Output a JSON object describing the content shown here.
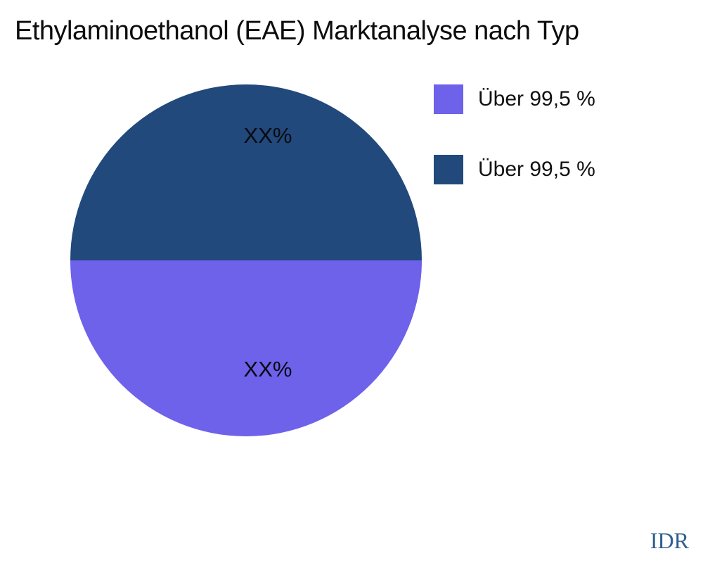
{
  "title": "Ethylaminoethanol (EAE) Marktanalyse nach Typ",
  "watermark": "IDR",
  "colors": {
    "background": "#ffffff",
    "slice_bottom": "#6e61ea",
    "slice_top": "#21497b",
    "watermark_text": "#2e6090"
  },
  "chart_data": {
    "type": "pie",
    "title": "Ethylaminoethanol (EAE) Marktanalyse nach Typ",
    "legend_position": "top-right",
    "start_angle_deg": 90,
    "segments": [
      {
        "label": "Über 99,5 %",
        "value": 50,
        "color": "#6e61ea",
        "slice_label": "XX%",
        "position": "bottom"
      },
      {
        "label": "Über 99,5 %",
        "value": 50,
        "color": "#21497b",
        "slice_label": "XX%",
        "position": "top"
      }
    ]
  },
  "legend": {
    "items": [
      {
        "label": "Über 99,5 %",
        "color": "#6e61ea"
      },
      {
        "label": "Über 99,5 %",
        "color": "#21497b"
      }
    ]
  },
  "pie_labels": {
    "top": "XX%",
    "bottom": "XX%"
  }
}
